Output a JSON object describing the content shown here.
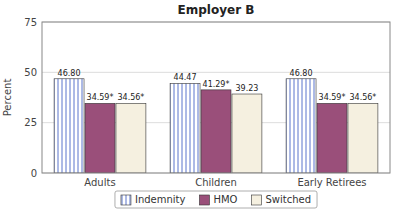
{
  "chart_data": {
    "type": "bar",
    "title": "Employer B",
    "y_label": "Percent",
    "categories": [
      "Adults",
      "Children",
      "Early Retirees"
    ],
    "series": [
      {
        "name": "Indemnity",
        "color": "#ffffff",
        "values": [
          46.8,
          44.47,
          46.8
        ],
        "value_labels": [
          "46.80",
          "44.47",
          "46.80"
        ]
      },
      {
        "name": "HMO",
        "color": "#9a4f7a",
        "values": [
          34.59,
          41.29,
          34.59
        ],
        "value_labels": [
          "34.59*",
          "41.29*",
          "34.59*"
        ]
      },
      {
        "name": "Switched",
        "color": "#f5f0e0",
        "values": [
          34.56,
          39.23,
          34.56
        ],
        "value_labels": [
          "34.56*",
          "39.23",
          "34.56*"
        ]
      }
    ],
    "ylim": [
      0,
      75
    ],
    "yticks": [
      0,
      25,
      50,
      75
    ],
    "grid": true,
    "legend": "bottom",
    "data_labels": true
  }
}
